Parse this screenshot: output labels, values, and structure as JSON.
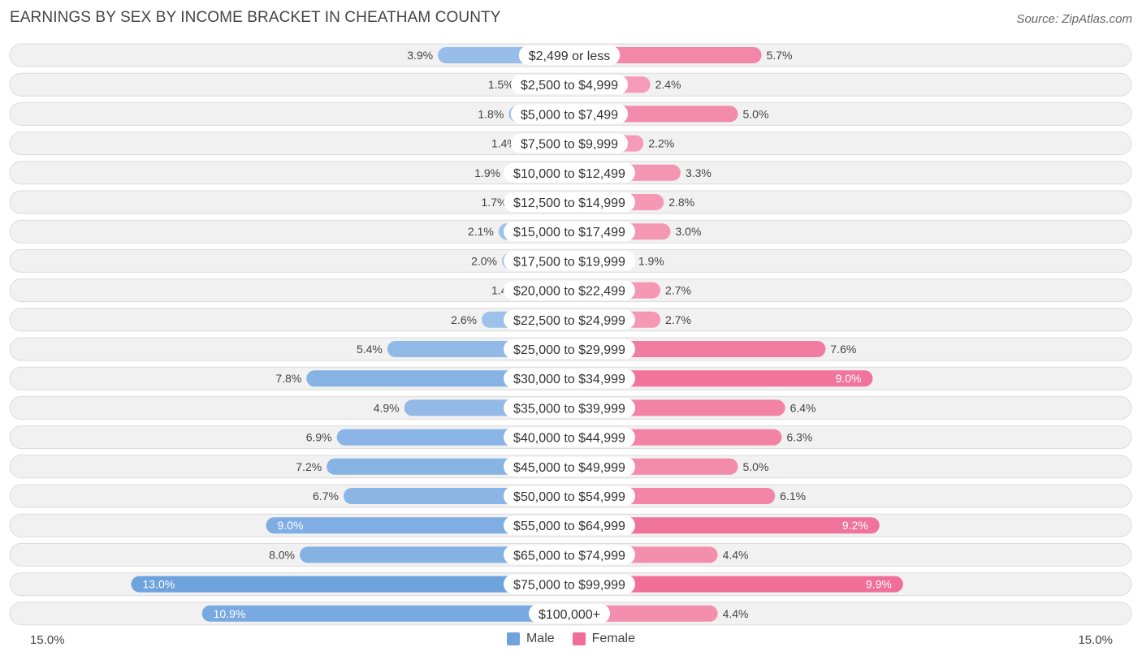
{
  "title": "EARNINGS BY SEX BY INCOME BRACKET IN CHEATHAM COUNTY",
  "source": "Source: ZipAtlas.com",
  "colors": {
    "male": "#6ea3de",
    "male_light": "#a9c8ec",
    "female": "#f06e98",
    "female_light": "#f6a8c1",
    "row_bg": "#f1f1f1",
    "row_border": "#dcdcdc"
  },
  "chart_data": {
    "type": "bar",
    "orientation": "diverging-horizontal",
    "title": "EARNINGS BY SEX BY INCOME BRACKET IN CHEATHAM COUNTY",
    "categories": [
      "$2,499 or less",
      "$2,500 to $4,999",
      "$5,000 to $7,499",
      "$7,500 to $9,999",
      "$10,000 to $12,499",
      "$12,500 to $14,999",
      "$15,000 to $17,499",
      "$17,500 to $19,999",
      "$20,000 to $22,499",
      "$22,500 to $24,999",
      "$25,000 to $29,999",
      "$30,000 to $34,999",
      "$35,000 to $39,999",
      "$40,000 to $44,999",
      "$45,000 to $49,999",
      "$50,000 to $54,999",
      "$55,000 to $64,999",
      "$65,000 to $74,999",
      "$75,000 to $99,999",
      "$100,000+"
    ],
    "series": [
      {
        "name": "Male",
        "values": [
          3.9,
          1.5,
          1.8,
          1.4,
          1.9,
          1.7,
          2.1,
          2.0,
          1.4,
          2.6,
          5.4,
          7.8,
          4.9,
          6.9,
          7.2,
          6.7,
          9.0,
          8.0,
          13.0,
          10.9
        ]
      },
      {
        "name": "Female",
        "values": [
          5.7,
          2.4,
          5.0,
          2.2,
          3.3,
          2.8,
          3.0,
          1.9,
          2.7,
          2.7,
          7.6,
          9.0,
          6.4,
          6.3,
          5.0,
          6.1,
          9.2,
          4.4,
          9.9,
          4.4
        ]
      }
    ],
    "value_labels": {
      "male": [
        "3.9%",
        "1.5%",
        "1.8%",
        "1.4%",
        "1.9%",
        "1.7%",
        "2.1%",
        "2.0%",
        "1.4%",
        "2.6%",
        "5.4%",
        "7.8%",
        "4.9%",
        "6.9%",
        "7.2%",
        "6.7%",
        "9.0%",
        "8.0%",
        "13.0%",
        "10.9%"
      ],
      "female": [
        "5.7%",
        "2.4%",
        "5.0%",
        "2.2%",
        "3.3%",
        "2.8%",
        "3.0%",
        "1.9%",
        "2.7%",
        "2.7%",
        "7.6%",
        "9.0%",
        "6.4%",
        "6.3%",
        "5.0%",
        "6.1%",
        "9.2%",
        "4.4%",
        "9.9%",
        "4.4%"
      ]
    },
    "xlim": [
      -15.0,
      15.0
    ],
    "axis_left_label": "15.0%",
    "axis_right_label": "15.0%",
    "legend": [
      "Male",
      "Female"
    ],
    "legend_position": "bottom-center",
    "inside_label_threshold": 8.5
  }
}
